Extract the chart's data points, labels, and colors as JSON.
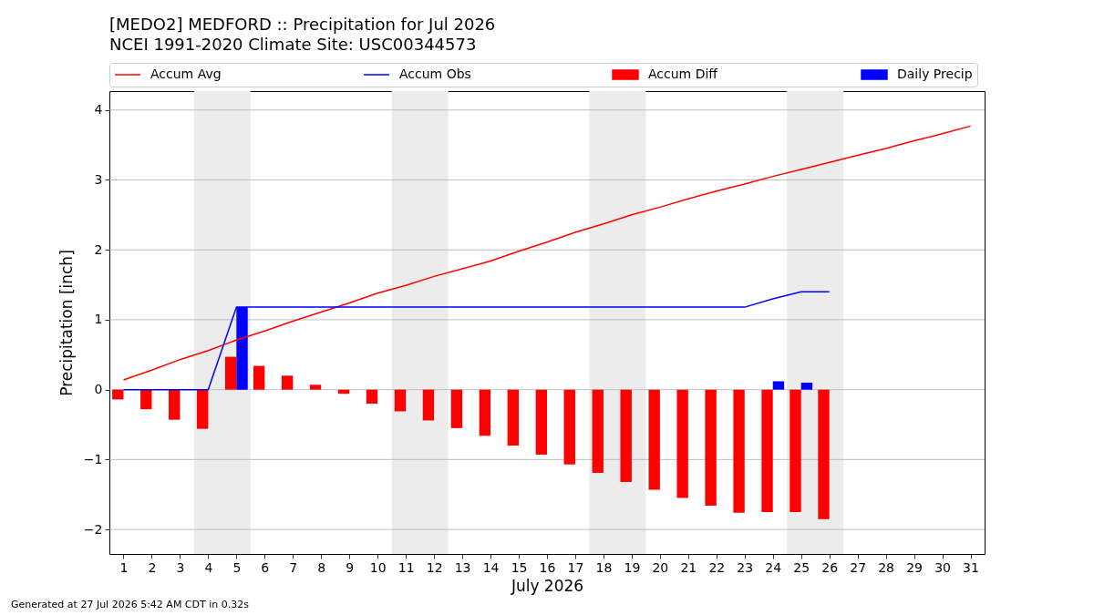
{
  "chart_data": {
    "type": "bar",
    "title": "[MEDO2] MEDFORD :: Precipitation for Jul 2026",
    "subtitle": "NCEI 1991-2020 Climate Site: USC00344573",
    "xlabel": "July 2026",
    "ylabel": "Precipitation [inch]",
    "annotations": [
      "Generated at 27 Jul 2026 5:42 AM CDT in 0.32s"
    ],
    "x": [
      1,
      2,
      3,
      4,
      5,
      6,
      7,
      8,
      9,
      10,
      11,
      12,
      13,
      14,
      15,
      16,
      17,
      18,
      19,
      20,
      21,
      22,
      23,
      24,
      25,
      26,
      27,
      28,
      29,
      30,
      31
    ],
    "series": [
      {
        "name": "Accum Avg",
        "type": "line",
        "color": "#ff0000",
        "values": [
          0.14,
          0.28,
          0.43,
          0.56,
          0.71,
          0.84,
          0.98,
          1.11,
          1.24,
          1.38,
          1.49,
          1.62,
          1.73,
          1.84,
          1.98,
          2.11,
          2.25,
          2.37,
          2.5,
          2.61,
          2.73,
          2.84,
          2.94,
          3.05,
          3.15,
          3.25,
          3.35,
          3.45,
          3.56,
          3.66,
          3.77
        ]
      },
      {
        "name": "Accum Obs",
        "type": "line",
        "color": "#0000ff",
        "values": [
          0,
          0,
          0,
          0,
          1.18,
          1.18,
          1.18,
          1.18,
          1.18,
          1.18,
          1.18,
          1.18,
          1.18,
          1.18,
          1.18,
          1.18,
          1.18,
          1.18,
          1.18,
          1.18,
          1.18,
          1.18,
          1.18,
          1.3,
          1.4,
          1.4,
          null,
          null,
          null,
          null,
          null
        ]
      },
      {
        "name": "Accum Diff",
        "type": "bar",
        "color": "#ff0000",
        "values": [
          -0.14,
          -0.28,
          -0.43,
          -0.56,
          0.47,
          0.34,
          0.2,
          0.07,
          -0.06,
          -0.2,
          -0.31,
          -0.44,
          -0.55,
          -0.66,
          -0.8,
          -0.93,
          -1.07,
          -1.19,
          -1.32,
          -1.43,
          -1.55,
          -1.66,
          -1.76,
          -1.75,
          -1.75,
          -1.85,
          null,
          null,
          null,
          null,
          null
        ]
      },
      {
        "name": "Daily Precip",
        "type": "bar",
        "color": "#0000ff",
        "values": [
          null,
          null,
          null,
          null,
          1.18,
          null,
          null,
          null,
          null,
          null,
          null,
          null,
          null,
          null,
          null,
          null,
          null,
          null,
          null,
          null,
          null,
          null,
          null,
          0.12,
          0.1,
          null,
          null,
          null,
          null,
          null,
          null
        ]
      }
    ],
    "xlim": [
      0.5,
      31.5
    ],
    "xticks": [
      1,
      2,
      3,
      4,
      5,
      6,
      7,
      8,
      9,
      10,
      11,
      12,
      13,
      14,
      15,
      16,
      17,
      18,
      19,
      20,
      21,
      22,
      23,
      24,
      25,
      26,
      27,
      28,
      29,
      30,
      31
    ],
    "ylim": [
      -2.35,
      4.27
    ],
    "yticks": [
      {
        "value": -2,
        "label": "−2"
      },
      {
        "value": -1,
        "label": "−1"
      },
      0,
      1,
      2,
      3,
      4
    ],
    "bands": [
      {
        "axis": "x",
        "from": 3.5,
        "to": 5.5,
        "color": "#ececec"
      },
      {
        "axis": "x",
        "from": 10.5,
        "to": 12.5,
        "color": "#ececec"
      },
      {
        "axis": "x",
        "from": 17.5,
        "to": 19.5,
        "color": "#ececec"
      },
      {
        "axis": "x",
        "from": 24.5,
        "to": 26.5,
        "color": "#ececec"
      }
    ],
    "grid": "y",
    "legend": "top"
  }
}
